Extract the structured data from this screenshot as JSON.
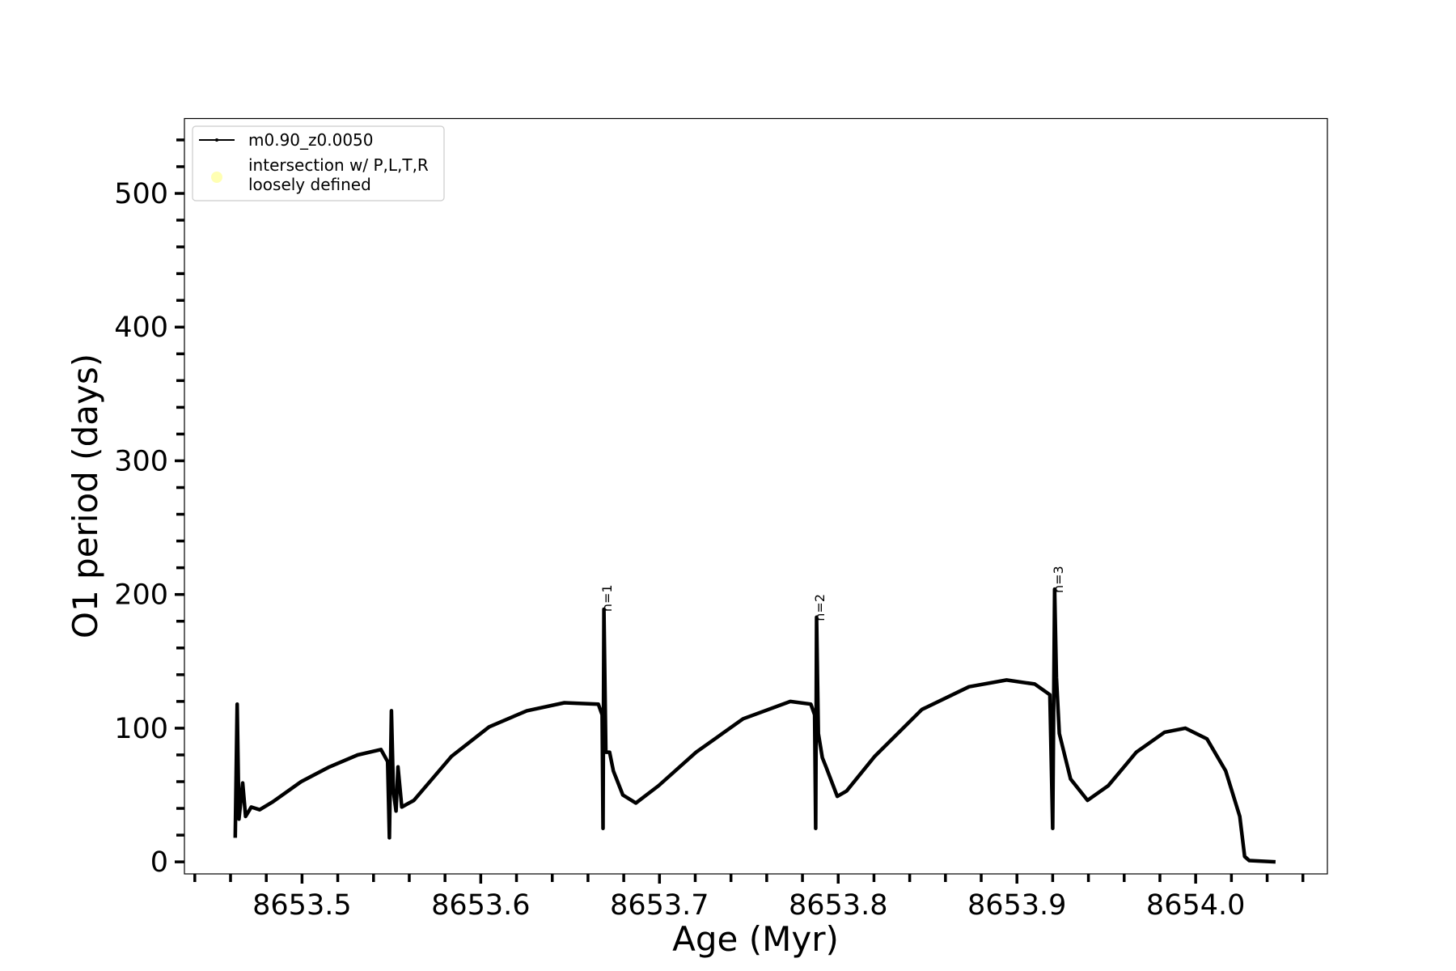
{
  "chart_data": {
    "type": "line",
    "xlabel": "Age (Myr)",
    "ylabel": "O1 period (days)",
    "xlim": [
      8653.4342,
      8654.0737
    ],
    "ylim": [
      -9,
      556
    ],
    "xticks": [
      8653.5,
      8653.6,
      8653.7,
      8653.8,
      8653.9,
      {
        "value": 8654.0,
        "label": "8654.0"
      }
    ],
    "yticks": [
      0,
      100,
      200,
      300,
      400,
      500
    ],
    "xminor_ticks": [
      8653.44,
      8653.46,
      8653.48,
      8653.52,
      8653.54,
      8653.56,
      8653.58,
      8653.62,
      8653.64,
      8653.66,
      8653.68,
      8653.72,
      8653.74,
      8653.76,
      8653.78,
      8653.82,
      8653.84,
      8653.86,
      8653.88,
      8653.92,
      8653.94,
      8653.96,
      8653.98,
      8654.02,
      8654.04,
      8654.06
    ],
    "yminor_ticks": [
      20,
      40,
      60,
      80,
      120,
      140,
      160,
      180,
      220,
      240,
      260,
      280,
      320,
      340,
      360,
      380,
      420,
      440,
      460,
      480,
      520,
      540
    ],
    "grid": false,
    "legend": "upper left",
    "series": [
      {
        "name": "m0.90_z0.0050",
        "color": "#000000",
        "x": [
          8653.4626,
          8653.4637,
          8653.4647,
          8653.4668,
          8653.4684,
          8653.4716,
          8653.4763,
          8653.4837,
          8653.4995,
          8653.5153,
          8653.5311,
          8653.5442,
          8653.5479,
          8653.5489,
          8653.55,
          8653.5511,
          8653.5526,
          8653.5537,
          8653.5558,
          8653.5626,
          8653.5837,
          8653.6047,
          8653.6258,
          8653.6468,
          8653.6658,
          8653.6679,
          8653.6684,
          8653.6689,
          8653.67,
          8653.6721,
          8653.6742,
          8653.6795,
          8653.6868,
          8653.6995,
          8653.7205,
          8653.7468,
          8653.7732,
          8653.7847,
          8653.7868,
          8653.7874,
          8653.7879,
          8653.7889,
          8653.7911,
          8653.7932,
          8653.7995,
          8653.8047,
          8653.8205,
          8653.8468,
          8653.8732,
          8653.8942,
          8653.91,
          8653.9184,
          8653.92,
          8653.9211,
          8653.9221,
          8653.9237,
          8653.93,
          8653.9395,
          8653.9511,
          8653.9668,
          8653.9826,
          8653.9942,
          8654.0063,
          8654.0168,
          8654.0247,
          8654.0274,
          8654.03,
          8654.0447
        ],
        "values": [
          18,
          118,
          32,
          59,
          34,
          41,
          39,
          45,
          60,
          71,
          80,
          84,
          75,
          18,
          113,
          53,
          38,
          71,
          41,
          46,
          79,
          101,
          113,
          119,
          118,
          110,
          25,
          189,
          82,
          82,
          68,
          50,
          44,
          57,
          82,
          107,
          120,
          118,
          110,
          25,
          183,
          96,
          78,
          71,
          49,
          53,
          79,
          114,
          131,
          136,
          133,
          125,
          25,
          204,
          138,
          96,
          62,
          46,
          57,
          82,
          97,
          100,
          92,
          68,
          34,
          4,
          1,
          0
        ]
      },
      {
        "name": "intersection w/ P,L,T,R\nloosely defined",
        "color": "#ffffb3"
      }
    ],
    "annotations": [
      {
        "text": "n=1",
        "x": 8653.6732,
        "y": 187
      },
      {
        "text": "n=2",
        "x": 8653.7921,
        "y": 180
      },
      {
        "text": "n=3",
        "x": 8653.9258,
        "y": 201
      }
    ]
  }
}
